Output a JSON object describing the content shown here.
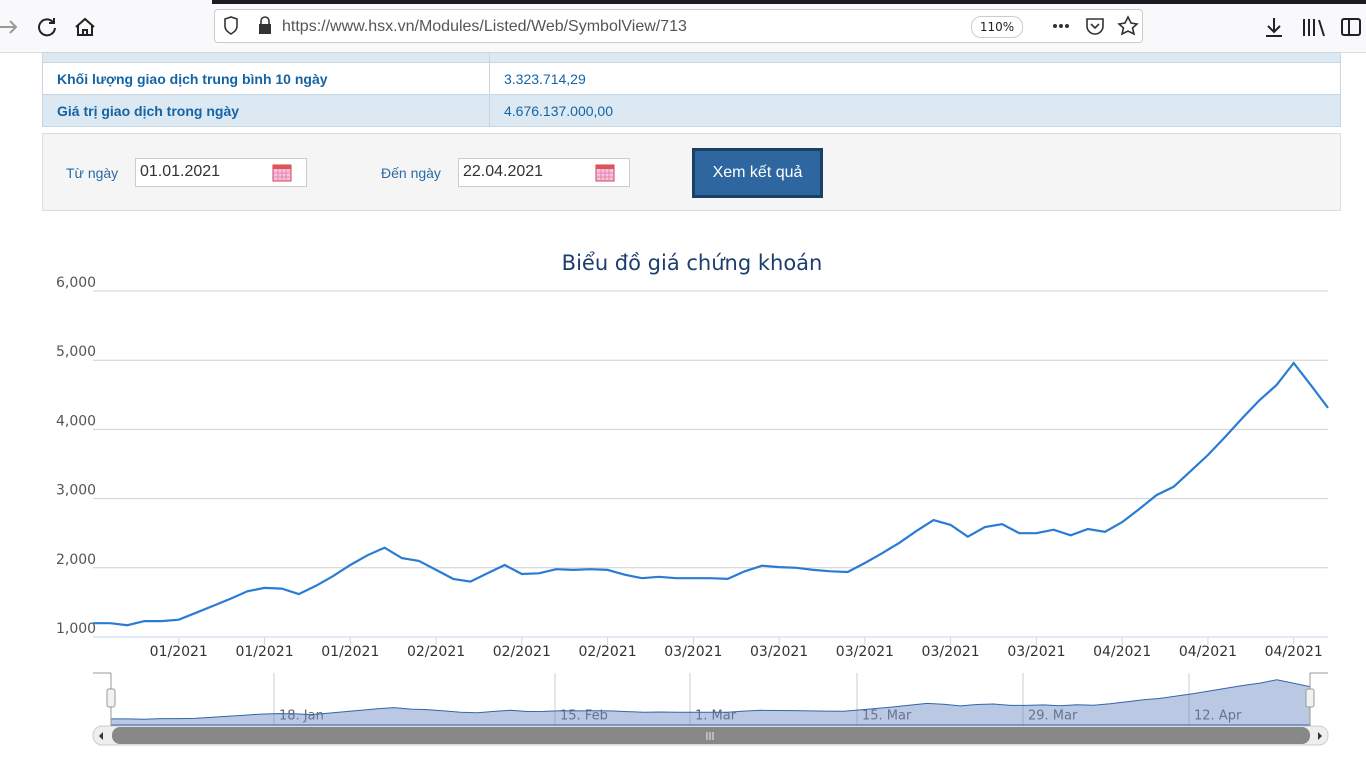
{
  "browser": {
    "url": "https://www.hsx.vn/Modules/Listed/Web/SymbolView/713",
    "zoom": "110%"
  },
  "table": {
    "rows": [
      [
        "Khối lượng giao dịch trung bình 10 ngày",
        "3.323.714,29"
      ],
      [
        "Giá trị giao dịch trong ngày",
        "4.676.137.000,00"
      ]
    ]
  },
  "form": {
    "from_label": "Từ ngày",
    "from_value": "01.01.2021",
    "to_label": "Đến ngày",
    "to_value": "22.04.2021",
    "button": "Xem kết quả"
  },
  "chart_data": {
    "type": "line",
    "title": "Biểu đồ giá chứng khoán",
    "categories": [
      null,
      null,
      null,
      null,
      null,
      "01/2021",
      null,
      null,
      null,
      null,
      "01/2021",
      null,
      null,
      null,
      null,
      "01/2021",
      null,
      null,
      null,
      null,
      "02/2021",
      null,
      null,
      null,
      null,
      "02/2021",
      null,
      null,
      null,
      null,
      "02/2021",
      null,
      null,
      null,
      null,
      "03/2021",
      null,
      null,
      null,
      null,
      "03/2021",
      null,
      null,
      null,
      null,
      "03/2021",
      null,
      null,
      null,
      null,
      "03/2021",
      null,
      null,
      null,
      null,
      "03/2021",
      null,
      null,
      null,
      null,
      "04/2021",
      null,
      null,
      null,
      null,
      "04/2021",
      null,
      null,
      null,
      null,
      "04/2021",
      null,
      null
    ],
    "series": [
      {
        "name": null,
        "color": "#2a7bd4",
        "values": [
          1200,
          1200,
          1170,
          1230,
          1230,
          1250,
          1350,
          1450,
          1550,
          1660,
          1710,
          1700,
          1620,
          1740,
          1880,
          2040,
          2180,
          2290,
          2140,
          2100,
          1970,
          1840,
          1800,
          1920,
          2040,
          1910,
          1920,
          1980,
          1970,
          1980,
          1970,
          1900,
          1850,
          1870,
          1850,
          1850,
          1850,
          1840,
          1950,
          2030,
          2010,
          2000,
          1970,
          1950,
          1940,
          2070,
          2210,
          2360,
          2530,
          2690,
          2620,
          2450,
          2590,
          2630,
          2500,
          2500,
          2550,
          2470,
          2560,
          2520,
          2660,
          2850,
          3050,
          3170,
          3400,
          3630,
          3890,
          4160,
          4420,
          4640,
          4960,
          4640,
          4310
        ]
      }
    ],
    "ylim": [
      1000,
      6000
    ],
    "yticks": [
      {
        "value": 1000,
        "label": "1,000"
      },
      {
        "value": 2000,
        "label": "2,000"
      },
      {
        "value": 3000,
        "label": "3,000"
      },
      {
        "value": 4000,
        "label": "4,000"
      },
      {
        "value": 5000,
        "label": "5,000"
      },
      {
        "value": 6000,
        "label": "6,000"
      }
    ],
    "grid": true,
    "navigator_labels": [
      "18. Jan",
      "15. Feb",
      "1. Mar",
      "15. Mar",
      "29. Mar",
      "12. Apr"
    ]
  }
}
